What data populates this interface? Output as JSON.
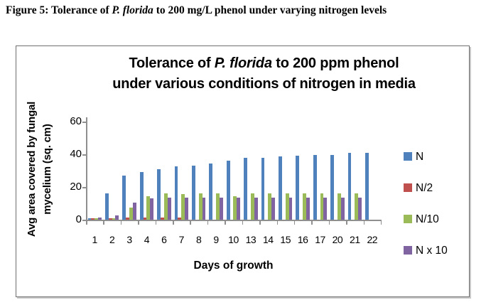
{
  "figure_caption": {
    "prefix": "Figure 5: Tolerance of ",
    "italic": "P. florida",
    "suffix": " to 200 mg/L phenol under varying nitrogen levels"
  },
  "chart_data": {
    "type": "bar",
    "title": {
      "line1_prefix": "Tolerance of ",
      "line1_italic": "P. florida",
      "line1_suffix": " to 200 ppm phenol",
      "line2": "under various conditions of nitrogen in media"
    },
    "xlabel": "Days of growth",
    "ylabel_line1": "Avg area covered by fungal",
    "ylabel_line2": "mycelium (sq. cm)",
    "categories": [
      "1",
      "2",
      "3",
      "4",
      "6",
      "7",
      "8",
      "9",
      "10",
      "13",
      "14",
      "15",
      "16",
      "17",
      "20",
      "21",
      "22"
    ],
    "series": [
      {
        "name": "N",
        "color": "#4F81BD",
        "values": [
          1,
          16,
          27,
          29,
          31,
          32.5,
          33,
          34.5,
          36,
          38,
          38,
          38.5,
          39,
          39.5,
          39.5,
          41,
          41
        ]
      },
      {
        "name": "N/2",
        "color": "#C0504D",
        "values": [
          1,
          1,
          1.5,
          1.5,
          1.5,
          1.5,
          0,
          0,
          0,
          0,
          0,
          0,
          0,
          0,
          0,
          0,
          0
        ]
      },
      {
        "name": "N/10",
        "color": "#9BBB59",
        "values": [
          1,
          1,
          7.5,
          14.5,
          16,
          15.5,
          16,
          16,
          14.5,
          16,
          16,
          16,
          16,
          16,
          16,
          16,
          0
        ]
      },
      {
        "name": "N x 10",
        "color": "#8064A2",
        "values": [
          1.5,
          2.5,
          10.5,
          13,
          13.5,
          13.5,
          13.5,
          13.5,
          13.5,
          13.5,
          13.5,
          13.5,
          13.5,
          13.5,
          13.5,
          13.5,
          0
        ]
      }
    ],
    "ylim": [
      0,
      60
    ],
    "yticks": [
      0,
      20,
      40,
      60
    ],
    "grid": false,
    "legend_position": "right",
    "axis_color": "#8f8f8f"
  }
}
